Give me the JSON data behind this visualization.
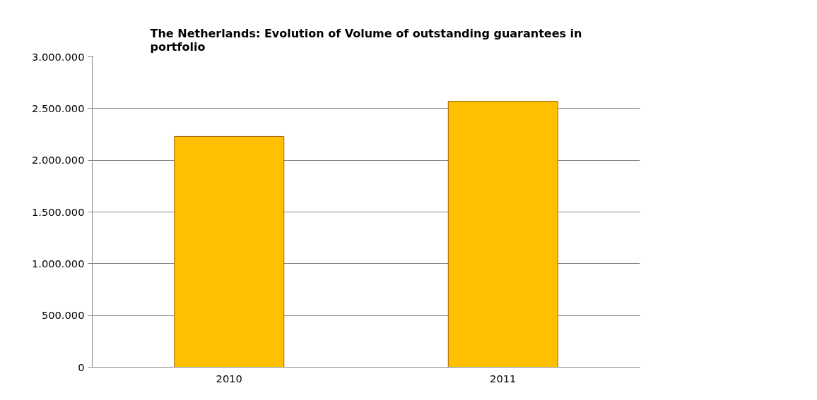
{
  "chart_data": {
    "type": "bar",
    "title": "The Netherlands: Evolution of Volume of outstanding guarantees in portfolio",
    "categories": [
      "2010",
      "2011"
    ],
    "values": [
      2230000,
      2570000
    ],
    "color": "#ffc000",
    "ylim": [
      0,
      3000000
    ],
    "yticks": [
      {
        "value": 0,
        "label": "0"
      },
      {
        "value": 500000,
        "label": "500.000"
      },
      {
        "value": 1000000,
        "label": "1.000.000"
      },
      {
        "value": 1500000,
        "label": "1.500.000"
      },
      {
        "value": 2000000,
        "label": "2.000.000"
      },
      {
        "value": 2500000,
        "label": "2.500.000"
      },
      {
        "value": 3000000,
        "label": "3.000.000"
      }
    ],
    "grid": "y"
  }
}
